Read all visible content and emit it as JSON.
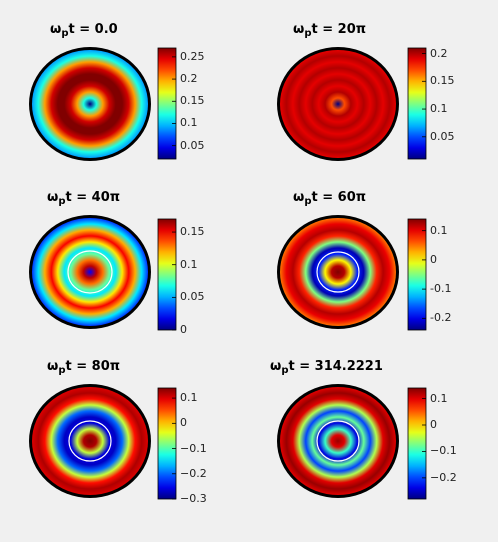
{
  "chart_data": [
    {
      "type": "heatmap",
      "title_prefix": "ω",
      "title_sub": "p",
      "title_suffix": "t = 0.0",
      "colorbar_ticks": [
        "0.25",
        "0.2",
        "0.15",
        "0.1",
        "0.05"
      ],
      "colorbar_range": [
        0.02,
        0.27
      ],
      "radial_profile": [
        0.02,
        0.12,
        0.2,
        0.25,
        0.27,
        0.27,
        0.25,
        0.2,
        0.12,
        0.09
      ]
    },
    {
      "type": "heatmap",
      "title_prefix": "ω",
      "title_sub": "p",
      "title_suffix": "t = 20π",
      "colorbar_ticks": [
        "0.2",
        "0.15",
        "0.1",
        "0.05"
      ],
      "colorbar_range": [
        0.01,
        0.21
      ],
      "radial_profile": [
        0.01,
        0.17,
        0.2,
        0.19,
        0.2,
        0.19,
        0.2,
        0.19,
        0.2,
        0.19
      ]
    },
    {
      "type": "heatmap",
      "title_prefix": "ω",
      "title_sub": "p",
      "title_suffix": "t = 40π",
      "colorbar_ticks": [
        "0.15",
        "0.1",
        "0.05",
        "0"
      ],
      "colorbar_range": [
        0.0,
        0.17
      ],
      "radial_profile": [
        0.02,
        0.16,
        0.13,
        0.08,
        0.06,
        0.11,
        0.15,
        0.12,
        0.06,
        0.03
      ]
    },
    {
      "type": "heatmap",
      "title_prefix": "ω",
      "title_sub": "p",
      "title_suffix": "t = 60π",
      "colorbar_ticks": [
        "0.1",
        "0",
        "-0.1",
        "-0.2"
      ],
      "colorbar_range": [
        -0.24,
        0.14
      ],
      "radial_profile": [
        0.14,
        0.12,
        0.0,
        -0.18,
        -0.22,
        -0.05,
        0.08,
        0.12,
        0.1,
        0.05
      ]
    },
    {
      "type": "heatmap",
      "title_prefix": "ω",
      "title_sub": "p",
      "title_suffix": "t = 80π",
      "colorbar_ticks": [
        "0.1",
        "0",
        "−0.1",
        "−0.2",
        "−0.3"
      ],
      "colorbar_range": [
        -0.3,
        0.14
      ],
      "radial_profile": [
        0.14,
        0.12,
        -0.05,
        -0.26,
        -0.27,
        -0.2,
        -0.05,
        0.08,
        0.12,
        0.1
      ]
    },
    {
      "type": "heatmap",
      "title_prefix": "ω",
      "title_sub": "p",
      "title_suffix": "t = 314.2221",
      "colorbar_ticks": [
        "0.1",
        "0",
        "−0.1",
        "−0.2"
      ],
      "colorbar_range": [
        -0.28,
        0.14
      ],
      "radial_profile": [
        0.13,
        0.1,
        -0.1,
        -0.24,
        -0.08,
        -0.2,
        -0.05,
        0.1,
        0.13,
        0.1
      ]
    }
  ]
}
